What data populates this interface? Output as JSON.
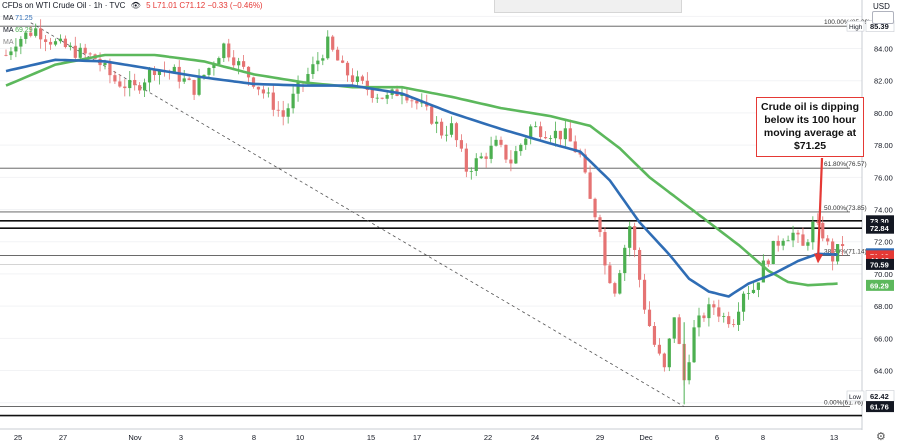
{
  "header": {
    "symbol": "CFDs on WTI Crude Oil · 1h · TVC",
    "eye_icon": "eye-icon",
    "ohlc": "5  L71.01  C71.12  −0.33 (−0.46%)",
    "ma1_label": "MA",
    "ma1_value": "71.25",
    "ma2_label": "MA",
    "ma2_value": "69.29",
    "ma3_label": "MA"
  },
  "currency": "USD",
  "callout": "Crude oil is dipping below its 100 hour moving average at $71.25",
  "colors": {
    "ma100": "#2f6db5",
    "ma200": "#5cb85c",
    "arrow": "#e53935",
    "candle_up": "#4caf50",
    "candle_down": "#e57373"
  },
  "chart_data": {
    "type": "candlestick",
    "ylim": [
      61.3,
      87.2
    ],
    "y_ticks": [
      "86.00",
      "84.00",
      "82.00",
      "80.00",
      "78.00",
      "76.00",
      "74.00",
      "72.00",
      "70.00",
      "68.00",
      "66.00",
      "64.00",
      "62.00"
    ],
    "x_ticks": [
      "25",
      "27",
      "Nov",
      "3",
      "8",
      "10",
      "15",
      "17",
      "22",
      "24",
      "29",
      "Dec",
      "6",
      "8",
      "13"
    ],
    "fib_levels": [
      {
        "label": "100.00%(85.39)",
        "value": 85.39
      },
      {
        "label": "61.80%(76.57)",
        "value": 76.57
      },
      {
        "label": "50.00%(73.85)",
        "value": 73.85
      },
      {
        "label": "38.20%(71.14)",
        "value": 71.14
      },
      {
        "label": "0.00%(61.76)",
        "value": 61.76
      }
    ],
    "horizontal_lines": [
      {
        "label": "73.30",
        "value": 73.3
      },
      {
        "label": "72.84",
        "value": 72.84
      }
    ],
    "price_tags": [
      {
        "label": "High",
        "value": "85.39",
        "color": "#ffffff",
        "text": "#131722"
      },
      {
        "label": "",
        "value": "73.30",
        "color": "#131722",
        "text": "#ffffff"
      },
      {
        "label": "",
        "value": "72.84",
        "color": "#131722",
        "text": "#ffffff"
      },
      {
        "label": "",
        "value": "71.25",
        "color": "#2f6db5",
        "text": "#ffffff"
      },
      {
        "label": "",
        "value": "71.12",
        "color": "#e53935",
        "text": "#ffffff"
      },
      {
        "label": "",
        "value": "44:19",
        "color": "#e53935",
        "text": "#ffffff"
      },
      {
        "label": "",
        "value": "70.59",
        "color": "#131722",
        "text": "#ffffff"
      },
      {
        "label": "",
        "value": "69.29",
        "color": "#5cb85c",
        "text": "#ffffff"
      },
      {
        "label": "Low",
        "value": "62.42",
        "color": "#ffffff",
        "text": "#131722"
      },
      {
        "label": "",
        "value": "61.76",
        "color": "#131722",
        "text": "#ffffff"
      }
    ],
    "price_anchors": [
      [
        0,
        83.6
      ],
      [
        2,
        84.5
      ],
      [
        6,
        85.2
      ],
      [
        10,
        84.3
      ],
      [
        14,
        83.8
      ],
      [
        18,
        83.4
      ],
      [
        22,
        82.0
      ],
      [
        26,
        81.5
      ],
      [
        30,
        82.8
      ],
      [
        34,
        82.5
      ],
      [
        38,
        81.5
      ],
      [
        41,
        82.8
      ],
      [
        44,
        84.2
      ],
      [
        47,
        83.0
      ],
      [
        50,
        82.0
      ],
      [
        53,
        80.9
      ],
      [
        56,
        79.8
      ],
      [
        59,
        81.5
      ],
      [
        62,
        82.8
      ],
      [
        65,
        84.3
      ],
      [
        68,
        82.7
      ],
      [
        71,
        81.9
      ],
      [
        74,
        81.3
      ],
      [
        77,
        80.9
      ],
      [
        80,
        81.5
      ],
      [
        83,
        80.6
      ],
      [
        86,
        79.7
      ],
      [
        88,
        78.8
      ],
      [
        90,
        79.1
      ],
      [
        93,
        76.5
      ],
      [
        96,
        77.2
      ],
      [
        99,
        78.0
      ],
      [
        102,
        77.0
      ],
      [
        106,
        79.1
      ],
      [
        110,
        78.8
      ],
      [
        113,
        78.6
      ],
      [
        116,
        77.3
      ],
      [
        118,
        74.5
      ],
      [
        120,
        73.0
      ],
      [
        121,
        70.5
      ],
      [
        123,
        69.1
      ],
      [
        126,
        73.0
      ],
      [
        129,
        68.0
      ],
      [
        131,
        65.6
      ],
      [
        133,
        64.0
      ],
      [
        135,
        67.5
      ],
      [
        137,
        63.4
      ],
      [
        139,
        66.5
      ],
      [
        141,
        67.5
      ],
      [
        143,
        68.0
      ],
      [
        145,
        67.3
      ],
      [
        147,
        67.2
      ],
      [
        149,
        69.0
      ],
      [
        151,
        69.1
      ],
      [
        153,
        70.5
      ],
      [
        155,
        71.6
      ],
      [
        157,
        72.4
      ],
      [
        159,
        72.5
      ],
      [
        161,
        71.6
      ],
      [
        163,
        73.0
      ],
      [
        165,
        72.5
      ],
      [
        167,
        71.0
      ],
      [
        169,
        71.9
      ]
    ],
    "ma100_anchors": [
      [
        0,
        82.6
      ],
      [
        10,
        83.3
      ],
      [
        20,
        83.2
      ],
      [
        30,
        82.7
      ],
      [
        40,
        82.2
      ],
      [
        50,
        81.8
      ],
      [
        60,
        81.7
      ],
      [
        70,
        81.7
      ],
      [
        80,
        81.2
      ],
      [
        90,
        80.0
      ],
      [
        100,
        79.0
      ],
      [
        110,
        78.1
      ],
      [
        116,
        77.6
      ],
      [
        122,
        75.8
      ],
      [
        128,
        73.2
      ],
      [
        134,
        71.2
      ],
      [
        138,
        69.7
      ],
      [
        142,
        68.9
      ],
      [
        146,
        68.6
      ],
      [
        150,
        69.4
      ],
      [
        155,
        70.0
      ],
      [
        160,
        70.8
      ],
      [
        164,
        71.25
      ],
      [
        168,
        71.2
      ]
    ],
    "ma200_anchors": [
      [
        0,
        81.7
      ],
      [
        10,
        83.0
      ],
      [
        20,
        83.6
      ],
      [
        30,
        83.6
      ],
      [
        40,
        83.2
      ],
      [
        50,
        82.4
      ],
      [
        60,
        81.9
      ],
      [
        70,
        81.6
      ],
      [
        80,
        81.6
      ],
      [
        90,
        81.0
      ],
      [
        100,
        80.3
      ],
      [
        110,
        79.8
      ],
      [
        118,
        79.2
      ],
      [
        124,
        77.8
      ],
      [
        130,
        76.0
      ],
      [
        136,
        74.6
      ],
      [
        142,
        73.2
      ],
      [
        148,
        71.8
      ],
      [
        154,
        70.2
      ],
      [
        158,
        69.5
      ],
      [
        162,
        69.3
      ],
      [
        168,
        69.4
      ]
    ],
    "trendline": {
      "from": [
        5,
        85.6
      ],
      "to": [
        137,
        61.76
      ]
    }
  }
}
